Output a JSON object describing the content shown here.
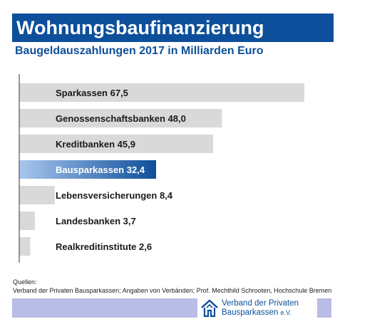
{
  "header": {
    "title": "Wohnungsbaufinanzierung",
    "subtitle": "Baugeldauszahlungen 2017 in Milliarden Euro"
  },
  "chart_data": {
    "type": "bar",
    "orientation": "horizontal",
    "title": "Wohnungsbaufinanzierung",
    "subtitle": "Baugeldauszahlungen 2017 in Milliarden Euro",
    "categories": [
      "Sparkassen",
      "Genossenschaftsbanken",
      "Kreditbanken",
      "Bausparkassen",
      "Lebensversicherungen",
      "Landesbanken",
      "Realkreditinstitute"
    ],
    "values": [
      67.5,
      48.0,
      45.9,
      32.4,
      8.4,
      3.7,
      2.6
    ],
    "value_labels": [
      "67,5",
      "48,0",
      "45,9",
      "32,4",
      "8,4",
      "3,7",
      "2,6"
    ],
    "highlighted_category": "Bausparkassen",
    "colors": {
      "bar": "#d9d9d9",
      "highlight_start": "#a9c6ee",
      "highlight_end": "#0d4f9a",
      "axis": "#555555"
    },
    "grid": false,
    "legend": "none"
  },
  "sources": {
    "label": "Quellen:",
    "text": "Verband der Privaten Bausparkassen; Angaben von Verbänden; Prof. Mechthild Schrooten, Hochschule Bremen"
  },
  "logo": {
    "line1": "Verband der Privaten",
    "line2": "Bausparkassen",
    "line2_suffix": "e.V.",
    "icon": "house-outline-icon"
  },
  "colors": {
    "brand_blue": "#0d4f9a",
    "footer_band": "#b9bde6"
  }
}
